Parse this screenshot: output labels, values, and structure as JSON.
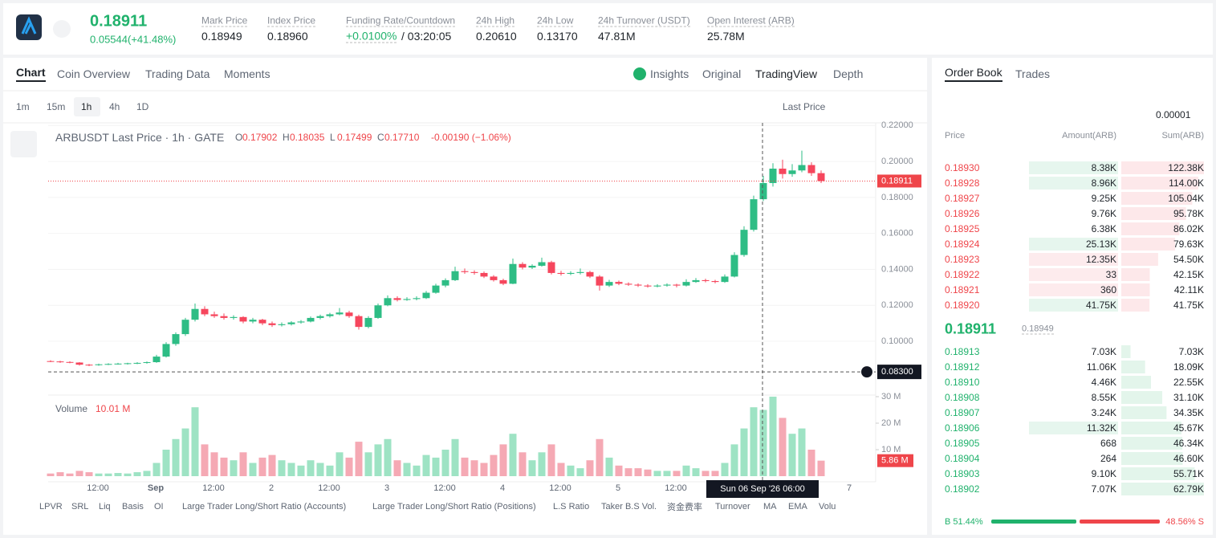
{
  "header": {
    "price": "0.18911",
    "change": "0.05544(+41.48%)",
    "stats": [
      {
        "label": "Mark Price",
        "value": "0.18949"
      },
      {
        "label": "Index Price",
        "value": "0.18960"
      },
      {
        "label": "Funding Rate/Countdown",
        "value": "+0.0100%",
        "extra": "/ 03:20:05"
      },
      {
        "label": "24h High",
        "value": "0.20610"
      },
      {
        "label": "24h Low",
        "value": "0.13170"
      },
      {
        "label": "24h Turnover (USDT)",
        "value": "47.81M"
      },
      {
        "label": "Open Interest (ARB)",
        "value": "25.78M"
      }
    ]
  },
  "tabs": [
    "Chart",
    "Coin Overview",
    "Trading Data",
    "Moments"
  ],
  "views": [
    "Insights",
    "Original",
    "TradingView",
    "Depth"
  ],
  "intervals": [
    "1m",
    "15m",
    "1h",
    "4h",
    "1D"
  ],
  "price_source": "Last Price",
  "chart_data": {
    "type": "candlestick",
    "title": "ARBUSDT Last Price · 1h · GATE",
    "ohlc": [
      {
        "label": "O",
        "value": "0.17902"
      },
      {
        "label": "H",
        "value": "0.18035"
      },
      {
        "label": "L",
        "value": "0.17499"
      },
      {
        "label": "C",
        "value": "0.17710"
      }
    ],
    "change": "-0.00190 (−1.06%)",
    "candles": [
      [
        0.089,
        0.0895,
        0.0884,
        0.0888
      ],
      [
        0.0888,
        0.0892,
        0.088,
        0.0885
      ],
      [
        0.0885,
        0.0889,
        0.0878,
        0.0882
      ],
      [
        0.0882,
        0.0884,
        0.0865,
        0.087
      ],
      [
        0.087,
        0.0874,
        0.0862,
        0.0868
      ],
      [
        0.0868,
        0.0876,
        0.0864,
        0.0872
      ],
      [
        0.0872,
        0.0878,
        0.0868,
        0.0874
      ],
      [
        0.0874,
        0.088,
        0.087,
        0.0876
      ],
      [
        0.0876,
        0.0881,
        0.0871,
        0.0878
      ],
      [
        0.0878,
        0.0884,
        0.0873,
        0.088
      ],
      [
        0.088,
        0.0888,
        0.0876,
        0.0884
      ],
      [
        0.0884,
        0.0925,
        0.088,
        0.0915
      ],
      [
        0.0915,
        0.0995,
        0.091,
        0.0985
      ],
      [
        0.0985,
        0.105,
        0.0975,
        0.104
      ],
      [
        0.104,
        0.113,
        0.103,
        0.112
      ],
      [
        0.112,
        0.121,
        0.111,
        0.118
      ],
      [
        0.118,
        0.1195,
        0.114,
        0.115
      ],
      [
        0.115,
        0.1165,
        0.113,
        0.114
      ],
      [
        0.114,
        0.1155,
        0.112,
        0.113
      ],
      [
        0.113,
        0.1145,
        0.112,
        0.1135
      ],
      [
        0.1135,
        0.114,
        0.11,
        0.111
      ],
      [
        0.111,
        0.113,
        0.11,
        0.112
      ],
      [
        0.112,
        0.1125,
        0.109,
        0.11
      ],
      [
        0.11,
        0.111,
        0.108,
        0.109
      ],
      [
        0.109,
        0.1105,
        0.1082,
        0.1095
      ],
      [
        0.1095,
        0.1112,
        0.1088,
        0.1105
      ],
      [
        0.1105,
        0.1118,
        0.1098,
        0.111
      ],
      [
        0.111,
        0.1138,
        0.1105,
        0.113
      ],
      [
        0.113,
        0.1148,
        0.1122,
        0.114
      ],
      [
        0.114,
        0.1158,
        0.1132,
        0.115
      ],
      [
        0.115,
        0.1185,
        0.1145,
        0.116
      ],
      [
        0.116,
        0.117,
        0.113,
        0.114
      ],
      [
        0.114,
        0.1148,
        0.1065,
        0.108
      ],
      [
        0.108,
        0.114,
        0.1072,
        0.113
      ],
      [
        0.113,
        0.121,
        0.1125,
        0.12
      ],
      [
        0.12,
        0.1255,
        0.1195,
        0.124
      ],
      [
        0.124,
        0.125,
        0.1222,
        0.123
      ],
      [
        0.123,
        0.1245,
        0.1225,
        0.1235
      ],
      [
        0.1235,
        0.125,
        0.1228,
        0.124
      ],
      [
        0.124,
        0.128,
        0.1235,
        0.127
      ],
      [
        0.127,
        0.132,
        0.1265,
        0.131
      ],
      [
        0.131,
        0.135,
        0.13,
        0.134
      ],
      [
        0.134,
        0.1415,
        0.1335,
        0.139
      ],
      [
        0.139,
        0.1405,
        0.1375,
        0.1385
      ],
      [
        0.1385,
        0.1395,
        0.137,
        0.138
      ],
      [
        0.138,
        0.1388,
        0.1352,
        0.136
      ],
      [
        0.136,
        0.1368,
        0.1332,
        0.134
      ],
      [
        0.134,
        0.1348,
        0.1312,
        0.132
      ],
      [
        0.132,
        0.146,
        0.1318,
        0.143
      ],
      [
        0.143,
        0.144,
        0.14,
        0.141
      ],
      [
        0.141,
        0.1428,
        0.1402,
        0.142
      ],
      [
        0.142,
        0.1465,
        0.1415,
        0.144
      ],
      [
        0.144,
        0.1448,
        0.1372,
        0.138
      ],
      [
        0.138,
        0.1392,
        0.1366,
        0.1375
      ],
      [
        0.1375,
        0.139,
        0.1368,
        0.138
      ],
      [
        0.138,
        0.1405,
        0.1372,
        0.1385
      ],
      [
        0.1385,
        0.1392,
        0.1352,
        0.136
      ],
      [
        0.136,
        0.1368,
        0.1282,
        0.131
      ],
      [
        0.131,
        0.1342,
        0.1302,
        0.133
      ],
      [
        0.133,
        0.1338,
        0.1312,
        0.132
      ],
      [
        0.132,
        0.1328,
        0.1308,
        0.1315
      ],
      [
        0.1315,
        0.1322,
        0.1302,
        0.131
      ],
      [
        0.131,
        0.1318,
        0.1298,
        0.1305
      ],
      [
        0.1305,
        0.1318,
        0.13,
        0.131
      ],
      [
        0.131,
        0.1322,
        0.1304,
        0.1315
      ],
      [
        0.1315,
        0.132,
        0.13,
        0.131
      ],
      [
        0.131,
        0.1345,
        0.1305,
        0.133
      ],
      [
        0.133,
        0.1352,
        0.1325,
        0.134
      ],
      [
        0.134,
        0.1348,
        0.1328,
        0.1335
      ],
      [
        0.1335,
        0.1342,
        0.1322,
        0.133
      ],
      [
        0.133,
        0.1372,
        0.1325,
        0.136
      ],
      [
        0.136,
        0.1495,
        0.1355,
        0.148
      ],
      [
        0.148,
        0.164,
        0.147,
        0.162
      ],
      [
        0.162,
        0.181,
        0.161,
        0.179
      ],
      [
        0.179,
        0.192,
        0.178,
        0.188
      ],
      [
        0.188,
        0.199,
        0.186,
        0.196
      ],
      [
        0.196,
        0.201,
        0.1905,
        0.193
      ],
      [
        0.193,
        0.1985,
        0.1915,
        0.195
      ],
      [
        0.195,
        0.206,
        0.194,
        0.198
      ],
      [
        0.198,
        0.1995,
        0.192,
        0.1935
      ],
      [
        0.1935,
        0.195,
        0.188,
        0.18911
      ]
    ],
    "ylim": [
      0.071,
      0.2228
    ],
    "yticks": [
      {
        "value": 0.22,
        "label": "0.22000"
      },
      {
        "value": 0.2,
        "label": "0.20000"
      },
      {
        "value": 0.18,
        "label": "0.18000"
      },
      {
        "value": 0.16,
        "label": "0.16000"
      },
      {
        "value": 0.14,
        "label": "0.14000"
      },
      {
        "value": 0.12,
        "label": "0.12000"
      },
      {
        "value": 0.1,
        "label": "0.10000"
      }
    ],
    "last_price": {
      "value": 0.18911,
      "label": "0.18911"
    },
    "crosshair_price": {
      "value": 0.083,
      "label": "0.08300"
    },
    "volume": {
      "title": "Volume",
      "label": "10.01 M",
      "values": [
        1,
        1.5,
        1,
        2,
        1.5,
        1,
        1,
        1.2,
        1,
        1.5,
        2,
        5,
        10,
        14,
        18,
        26,
        12,
        9,
        7,
        6,
        9,
        5,
        7,
        8,
        6,
        5,
        4,
        6,
        5,
        4,
        9,
        7,
        13,
        9,
        12,
        14,
        6,
        5,
        4,
        8,
        7,
        10,
        14,
        7,
        6,
        5,
        8,
        12,
        16,
        9,
        6,
        9,
        12,
        5,
        4,
        3,
        6,
        14,
        7,
        4,
        3,
        3,
        2.5,
        2,
        2,
        2,
        4,
        3,
        2,
        2,
        5,
        12,
        18,
        26,
        25,
        30,
        22,
        16,
        18,
        10,
        5.86
      ],
      "ylim": [
        0,
        30.6
      ],
      "yticks": [
        {
          "value": 30,
          "label": "30 M"
        },
        {
          "value": 20,
          "label": "20 M"
        },
        {
          "value": 10,
          "label": "10 M"
        }
      ],
      "last": {
        "value": 5.86,
        "label": "5.86 M"
      }
    },
    "xticks": [
      "12:00",
      "Sep",
      "12:00",
      "2",
      "12:00",
      "3",
      "12:00",
      "4",
      "12:00",
      "5",
      "12:00",
      "7"
    ],
    "crosshair_time": "Sun 06 Sep '26   06:00"
  },
  "indicators": [
    "LPVR",
    "SRL",
    "Liq",
    "Basis",
    "OI",
    "Large Trader Long/Short Ratio (Accounts)",
    "Large Trader Long/Short Ratio (Positions)",
    "L.S Ratio",
    "Taker B.S Vol.",
    "资金费率",
    "Turnover",
    "MA",
    "EMA",
    "Volu"
  ],
  "order_book": {
    "tabs": [
      "Order Book",
      "Trades"
    ],
    "precision": "0.00001",
    "headers": [
      "Price",
      "Amount(ARB)",
      "Sum(ARB)"
    ],
    "asks": {
      "price": [
        "0.18930",
        "0.18928",
        "0.18927",
        "0.18926",
        "0.18925",
        "0.18924",
        "0.18923",
        "0.18922",
        "0.18921",
        "0.18920"
      ],
      "amount": [
        "8.38K",
        "8.96K",
        "9.25K",
        "9.76K",
        "6.38K",
        "25.13K",
        "12.35K",
        "33",
        "360",
        "41.75K"
      ],
      "values": [
        122380,
        114000,
        105040,
        95780,
        86020,
        79630,
        54500,
        42150,
        42110,
        41750
      ],
      "value_labels": [
        "122.38K",
        "114.00K",
        "105.04K",
        "95.78K",
        "86.02K",
        "79.63K",
        "54.50K",
        "42.15K",
        "42.11K",
        "41.75K"
      ]
    },
    "mid": "0.18911",
    "mark": "0.18949",
    "bids": {
      "price": [
        "0.18913",
        "0.18912",
        "0.18910",
        "0.18908",
        "0.18907",
        "0.18906",
        "0.18905",
        "0.18904",
        "0.18903",
        "0.18902"
      ],
      "amount": [
        "7.03K",
        "11.06K",
        "4.46K",
        "8.55K",
        "3.24K",
        "11.32K",
        "668",
        "264",
        "9.10K",
        "7.07K"
      ],
      "values": [
        7030,
        18090,
        22550,
        31100,
        34350,
        45670,
        46340,
        46600,
        55710,
        62790
      ],
      "value_labels": [
        "7.03K",
        "18.09K",
        "22.55K",
        "31.10K",
        "34.35K",
        "45.67K",
        "46.34K",
        "46.60K",
        "55.71K",
        "62.79K"
      ]
    },
    "ratio": {
      "values": [
        51.44,
        48.56
      ],
      "value_labels": [
        "B 51.44%",
        "48.56% S"
      ]
    }
  }
}
